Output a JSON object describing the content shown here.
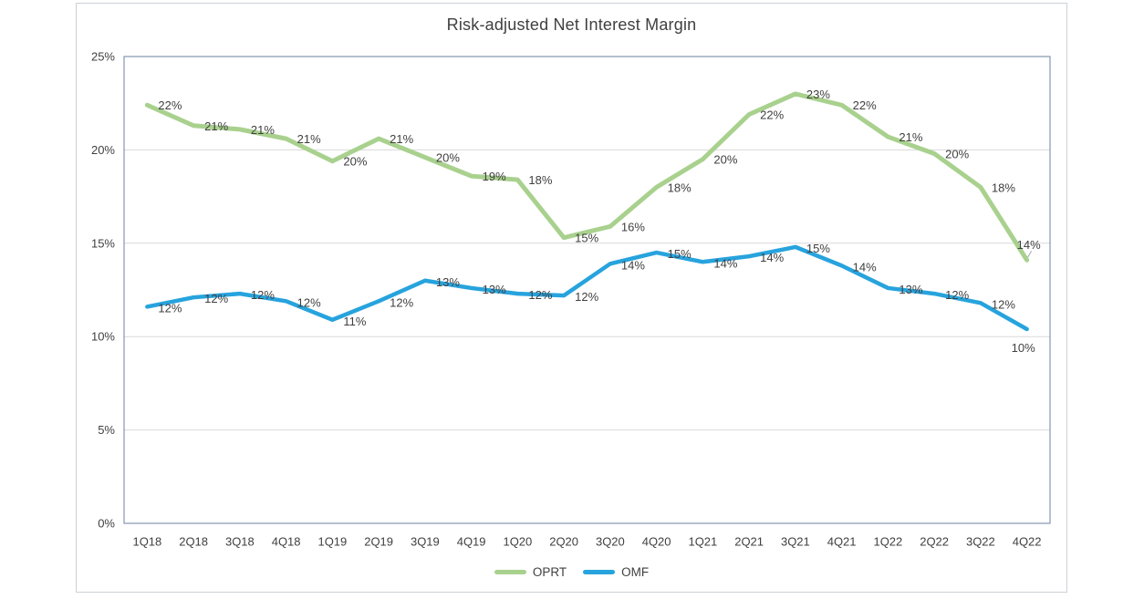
{
  "chart": {
    "title": "Risk-adjusted Net Interest Margin"
  },
  "chart_data": {
    "type": "line",
    "title": "Risk-adjusted Net Interest Margin",
    "categories": [
      "1Q18",
      "2Q18",
      "3Q18",
      "4Q18",
      "1Q19",
      "2Q19",
      "3Q19",
      "4Q19",
      "1Q20",
      "2Q20",
      "3Q20",
      "4Q20",
      "1Q21",
      "2Q21",
      "3Q21",
      "4Q21",
      "1Q22",
      "2Q22",
      "3Q22",
      "4Q22"
    ],
    "series": [
      {
        "name": "OPRT",
        "color": "#a9d18e",
        "line_width": 5,
        "values": [
          22,
          21,
          21,
          21,
          20,
          21,
          20,
          19,
          18,
          15,
          16,
          18,
          20,
          22,
          23,
          22,
          21,
          20,
          18,
          14
        ],
        "labels": [
          "22%",
          "21%",
          "21%",
          "21%",
          "20%",
          "21%",
          "20%",
          "19%",
          "18%",
          "15%",
          "16%",
          "18%",
          "20%",
          "22%",
          "23%",
          "22%",
          "21%",
          "20%",
          "18%",
          "14%"
        ],
        "plot_values": [
          22.4,
          21.3,
          21.1,
          20.6,
          19.4,
          20.6,
          19.6,
          18.6,
          18.4,
          15.3,
          15.9,
          18.0,
          19.5,
          21.9,
          23.0,
          22.4,
          20.7,
          19.8,
          18.0,
          14.1
        ]
      },
      {
        "name": "OMF",
        "color": "#27a3dd",
        "line_width": 4.5,
        "values": [
          12,
          12,
          12,
          12,
          11,
          12,
          13,
          13,
          12,
          12,
          14,
          15,
          14,
          14,
          15,
          14,
          13,
          12,
          12,
          10
        ],
        "labels": [
          "12%",
          "12%",
          "12%",
          "12%",
          "11%",
          "12%",
          "13%",
          "13%",
          "12%",
          "12%",
          "14%",
          "15%",
          "14%",
          "14%",
          "15%",
          "14%",
          "13%",
          "12%",
          "12%",
          "10%"
        ],
        "plot_values": [
          11.6,
          12.1,
          12.3,
          11.9,
          10.9,
          11.9,
          13.0,
          12.6,
          12.3,
          12.2,
          13.9,
          14.5,
          14.0,
          14.3,
          14.8,
          13.8,
          12.6,
          12.3,
          11.8,
          10.4
        ]
      }
    ],
    "xlabel": "",
    "ylabel": "",
    "ylim": [
      0,
      25
    ],
    "y_ticks": [
      {
        "label": "25%",
        "value": 25
      },
      {
        "label": "20%",
        "value": 20
      },
      {
        "label": "15%",
        "value": 15
      },
      {
        "label": "10%",
        "value": 10
      },
      {
        "label": "5%",
        "value": 5
      },
      {
        "label": "0%",
        "value": 0
      }
    ],
    "grid": "horizontal",
    "legend_position": "bottom"
  },
  "colors": {
    "oprt_green": "#a9d18e",
    "omf_blue": "#27a3dd",
    "gridline": "#d9d9d9",
    "plot_border": "#8497b0",
    "text": "#404040",
    "leader_line": "#a6a6a6",
    "card_border": "#ccd1d6"
  }
}
